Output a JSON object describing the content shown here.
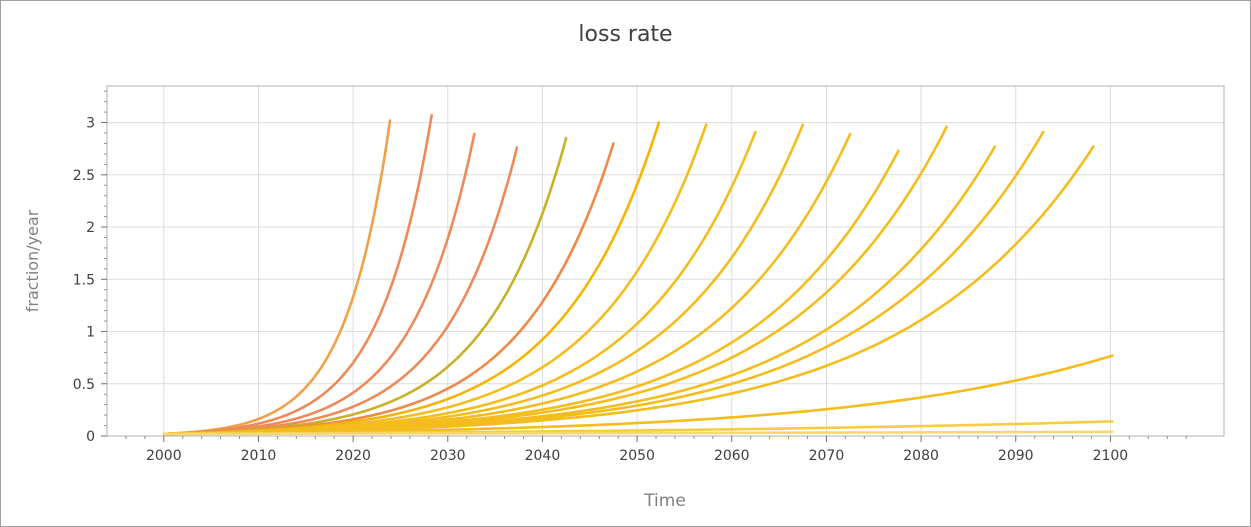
{
  "chart_data": {
    "type": "line",
    "title": "loss rate",
    "xlabel": "Time",
    "ylabel": "fraction/year",
    "xlim": [
      1994,
      2112
    ],
    "ylim": [
      0,
      3.35
    ],
    "x_ticks": [
      "2000",
      "2010",
      "2020",
      "2030",
      "2040",
      "2050",
      "2060",
      "2070",
      "2080",
      "2090",
      "2100"
    ],
    "y_ticks": [
      "0",
      "0.5",
      "1",
      "1.5",
      "2",
      "2.5",
      "3"
    ],
    "grid": true,
    "start_year": 2000,
    "base_value": 0.02,
    "series": [
      {
        "color": "#f0a048",
        "end_x": 2023.9,
        "peak": 3.02
      },
      {
        "color": "#ee8a5a",
        "end_x": 2028.3,
        "peak": 3.07
      },
      {
        "color": "#ee8a5a",
        "end_x": 2032.8,
        "peak": 2.89
      },
      {
        "color": "#ee8a5a",
        "end_x": 2037.3,
        "peak": 2.76
      },
      {
        "color": "#c8b028",
        "end_x": 2042.5,
        "peak": 2.85
      },
      {
        "color": "#f08848",
        "end_x": 2047.5,
        "peak": 2.8
      },
      {
        "color": "#f6b400",
        "end_x": 2052.3,
        "peak": 3.0
      },
      {
        "color": "#f4bc1c",
        "end_x": 2057.3,
        "peak": 2.98
      },
      {
        "color": "#f4bc1c",
        "end_x": 2062.5,
        "peak": 2.91
      },
      {
        "color": "#f4bc1c",
        "end_x": 2067.5,
        "peak": 2.98
      },
      {
        "color": "#f4bc1c",
        "end_x": 2072.5,
        "peak": 2.89
      },
      {
        "color": "#f4bc1c",
        "end_x": 2077.6,
        "peak": 2.73
      },
      {
        "color": "#f4bc1c",
        "end_x": 2082.7,
        "peak": 2.96
      },
      {
        "color": "#f4bc1c",
        "end_x": 2087.8,
        "peak": 2.77
      },
      {
        "color": "#f4bc1c",
        "end_x": 2092.9,
        "peak": 2.91
      },
      {
        "color": "#f4bc1c",
        "end_x": 2098.2,
        "peak": 2.77
      },
      {
        "color": "#f4bc1c",
        "end_x": 2100.2,
        "peak": 0.77
      },
      {
        "color": "#f6cc40",
        "end_x": 2100.2,
        "peak": 0.14
      },
      {
        "color": "#f6d870",
        "end_x": 2100.2,
        "peak": 0.04
      }
    ]
  }
}
